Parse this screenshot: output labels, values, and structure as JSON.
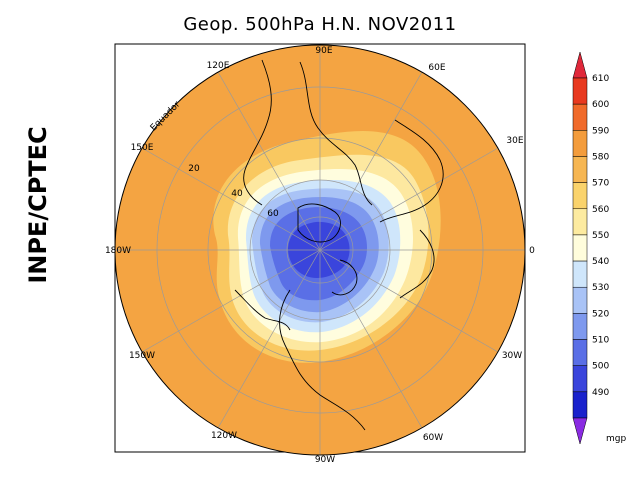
{
  "title": "Geop. 500hPa H.N. NOV2011",
  "side_label": "INPE/CPTEC",
  "map": {
    "projection": "north polar stereographic",
    "longitude_labels": [
      "90E",
      "60E",
      "30E",
      "0",
      "30W",
      "60W",
      "90W",
      "120W",
      "150W",
      "180W",
      "150E",
      "120E"
    ],
    "latitude_labels": [
      "Equador",
      "20",
      "40",
      "60"
    ],
    "colors": {
      "ocean_outer": "#f4a442",
      "coastline": "#000000",
      "gridline": "#9a9a9a"
    }
  },
  "colorbar": {
    "unit": "mgp",
    "levels": [
      "610",
      "600",
      "590",
      "580",
      "570",
      "560",
      "550",
      "540",
      "530",
      "520",
      "510",
      "500",
      "490"
    ],
    "colors": [
      "#e8391f",
      "#f06a2a",
      "#f39c3c",
      "#f6b652",
      "#fad36c",
      "#fdeba0",
      "#fffddc",
      "#cfe6fb",
      "#a9c3f6",
      "#7e99ee",
      "#5a6fe6",
      "#3a45dc",
      "#1a22cc"
    ],
    "top_arrow_color": "#e0283a",
    "bottom_arrow_color": "#8a2be2"
  }
}
